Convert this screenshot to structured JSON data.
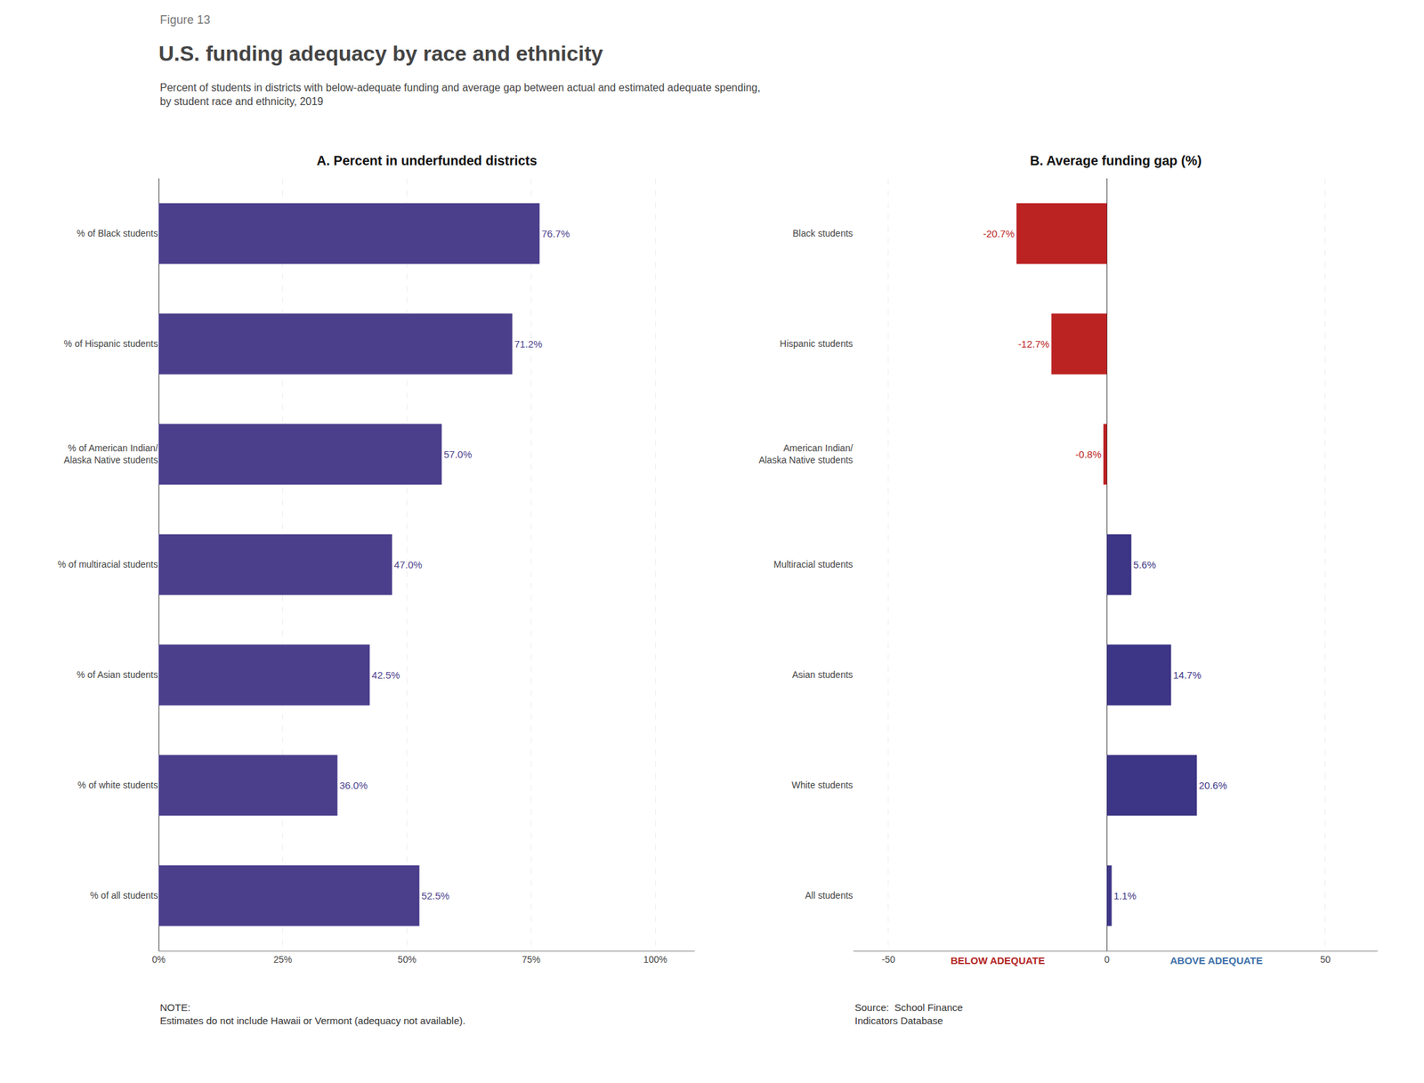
{
  "title": "U.S. funding adequacy by race and ethnicity",
  "subtitle": "Percent of students in districts with below-adequate funding and average gap between actual and estimated adequate spending,\nby student race and ethnicity, 2019",
  "annotations": [
    {
      "text": "Figure 13"
    },
    {
      "text": "NOTE:\nEstimates do not include Hawaii or Vermont (adequacy not available)."
    },
    {
      "text": "Source:  School Finance\nIndicators Database"
    }
  ],
  "chart_data": [
    {
      "type": "bar",
      "orientation": "horizontal",
      "title": "A. Percent in underfunded districts",
      "categories": [
        "% of Black students",
        "% of Hispanic students",
        "% of American Indian/\nAlaska Native students",
        "% of multiracial students",
        "% of Asian students",
        "% of white students",
        "% of all students"
      ],
      "values": [
        76.7,
        71.2,
        57.0,
        47.0,
        42.5,
        36.0,
        52.5
      ],
      "color": "#4B3F8C",
      "data_labels": true,
      "value_labels": [
        "76.7%",
        "71.2%",
        "57.0%",
        "47.0%",
        "42.5%",
        "36.0%",
        "52.5%"
      ],
      "xlim": [
        0,
        108
      ],
      "xticks": [
        {
          "value": 0,
          "label": "0%"
        },
        {
          "value": 25,
          "label": "25%"
        },
        {
          "value": 50,
          "label": "50%"
        },
        {
          "value": 75,
          "label": "75%"
        },
        {
          "value": 100,
          "label": "100%"
        }
      ],
      "grid": true
    },
    {
      "type": "bar",
      "orientation": "horizontal",
      "title": "B. Average funding gap (%)",
      "categories": [
        "Black students",
        "Hispanic students",
        "American Indian/\nAlaska Native students",
        "Multiracial students",
        "Asian students",
        "White students",
        "All students"
      ],
      "values": [
        -20.7,
        -12.7,
        -0.8,
        5.6,
        14.7,
        20.6,
        1.1
      ],
      "colors": [
        "#BB2222",
        "#BB2222",
        "#BB2222",
        "#3D3585",
        "#3D3585",
        "#3D3585",
        "#3D3585"
      ],
      "data_labels": true,
      "value_labels": [
        "-20.7%",
        "-12.7%",
        "-0.8%",
        "5.6%",
        "14.7%",
        "20.6%",
        "1.1%"
      ],
      "xlim": [
        -58,
        62
      ],
      "xticks": [
        -50,
        0,
        50
      ],
      "grid": true,
      "annotations": [
        {
          "text": "BELOW ADEQUATE",
          "color": "#B22222"
        },
        {
          "text": "ABOVE ADEQUATE",
          "color": "#3B6EA8"
        }
      ]
    }
  ]
}
